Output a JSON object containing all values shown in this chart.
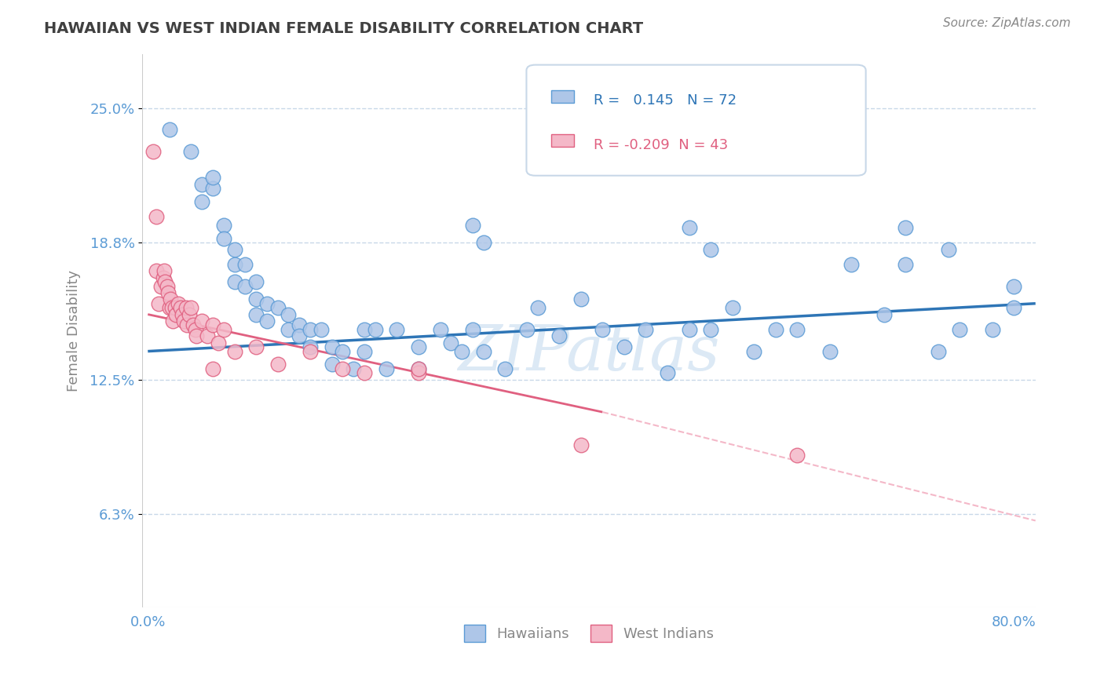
{
  "title": "HAWAIIAN VS WEST INDIAN FEMALE DISABILITY CORRELATION CHART",
  "source": "Source: ZipAtlas.com",
  "xlim": [
    -0.005,
    0.82
  ],
  "ylim": [
    0.02,
    0.275
  ],
  "ylabel_ticks": [
    0.063,
    0.125,
    0.188,
    0.25
  ],
  "ylabel_labels": [
    "6.3%",
    "12.5%",
    "18.8%",
    "25.0%"
  ],
  "xtick_left_label": "0.0%",
  "xtick_right_label": "80.0%",
  "hawaiian_R": 0.145,
  "hawaiian_N": 72,
  "westindian_R": -0.209,
  "westindian_N": 43,
  "hawaiian_color": "#aec6e8",
  "hawaiian_edge": "#5b9bd5",
  "westindian_color": "#f4b8c8",
  "westindian_edge": "#e06080",
  "trend_hawaiian_color": "#2e75b6",
  "trend_westindian_solid_color": "#e06080",
  "trend_westindian_dashed_color": "#f4b8c8",
  "background_color": "#ffffff",
  "grid_color": "#c8d8e8",
  "title_color": "#404040",
  "axis_color": "#5b9bd5",
  "watermark_color": "#dce9f5",
  "legend_R_color": "#2e75b6",
  "legend_R2_color": "#e06080",
  "hawaiian_x": [
    0.02,
    0.04,
    0.05,
    0.05,
    0.06,
    0.06,
    0.07,
    0.07,
    0.08,
    0.08,
    0.08,
    0.09,
    0.09,
    0.1,
    0.1,
    0.1,
    0.11,
    0.11,
    0.12,
    0.13,
    0.13,
    0.14,
    0.14,
    0.15,
    0.15,
    0.16,
    0.17,
    0.17,
    0.18,
    0.19,
    0.2,
    0.2,
    0.21,
    0.22,
    0.23,
    0.25,
    0.25,
    0.27,
    0.28,
    0.29,
    0.3,
    0.31,
    0.33,
    0.35,
    0.36,
    0.38,
    0.4,
    0.42,
    0.44,
    0.46,
    0.48,
    0.5,
    0.52,
    0.54,
    0.56,
    0.58,
    0.6,
    0.63,
    0.65,
    0.68,
    0.7,
    0.73,
    0.75,
    0.78,
    0.8,
    0.8,
    0.3,
    0.31,
    0.5,
    0.52,
    0.7,
    0.74
  ],
  "hawaiian_y": [
    0.24,
    0.23,
    0.215,
    0.207,
    0.213,
    0.218,
    0.196,
    0.19,
    0.178,
    0.17,
    0.185,
    0.178,
    0.168,
    0.17,
    0.162,
    0.155,
    0.16,
    0.152,
    0.158,
    0.155,
    0.148,
    0.15,
    0.145,
    0.148,
    0.14,
    0.148,
    0.14,
    0.132,
    0.138,
    0.13,
    0.148,
    0.138,
    0.148,
    0.13,
    0.148,
    0.14,
    0.13,
    0.148,
    0.142,
    0.138,
    0.148,
    0.138,
    0.13,
    0.148,
    0.158,
    0.145,
    0.162,
    0.148,
    0.14,
    0.148,
    0.128,
    0.148,
    0.148,
    0.158,
    0.138,
    0.148,
    0.148,
    0.138,
    0.178,
    0.155,
    0.178,
    0.138,
    0.148,
    0.148,
    0.158,
    0.168,
    0.196,
    0.188,
    0.195,
    0.185,
    0.195,
    0.185
  ],
  "westindian_x": [
    0.005,
    0.008,
    0.008,
    0.01,
    0.012,
    0.014,
    0.015,
    0.016,
    0.018,
    0.019,
    0.02,
    0.021,
    0.022,
    0.023,
    0.025,
    0.026,
    0.028,
    0.03,
    0.032,
    0.033,
    0.035,
    0.036,
    0.038,
    0.04,
    0.042,
    0.044,
    0.045,
    0.05,
    0.055,
    0.06,
    0.065,
    0.07,
    0.08,
    0.1,
    0.12,
    0.15,
    0.18,
    0.2,
    0.25,
    0.4,
    0.6,
    0.06,
    0.25
  ],
  "westindian_y": [
    0.23,
    0.2,
    0.175,
    0.16,
    0.168,
    0.172,
    0.175,
    0.17,
    0.168,
    0.165,
    0.158,
    0.162,
    0.158,
    0.152,
    0.158,
    0.155,
    0.16,
    0.158,
    0.155,
    0.152,
    0.158,
    0.15,
    0.155,
    0.158,
    0.15,
    0.148,
    0.145,
    0.152,
    0.145,
    0.15,
    0.142,
    0.148,
    0.138,
    0.14,
    0.132,
    0.138,
    0.13,
    0.128,
    0.128,
    0.095,
    0.09,
    0.13,
    0.13
  ],
  "trend_h_x0": 0.0,
  "trend_h_x1": 0.82,
  "trend_h_y0": 0.138,
  "trend_h_y1": 0.16,
  "trend_w_x0": 0.0,
  "trend_w_x1": 0.42,
  "trend_w_y0": 0.155,
  "trend_w_y1": 0.11,
  "trend_w_dash_x0": 0.42,
  "trend_w_dash_x1": 0.82,
  "trend_w_dash_y0": 0.11,
  "trend_w_dash_y1": 0.06
}
